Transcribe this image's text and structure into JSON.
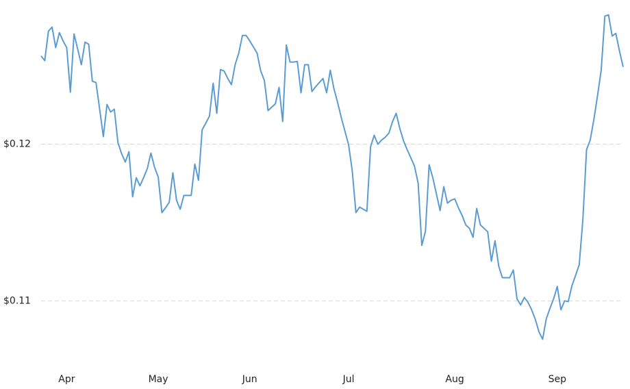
{
  "chart_data": {
    "type": "line",
    "categories": [
      null,
      null,
      null,
      null,
      null,
      null,
      null,
      "Apr",
      null,
      null,
      null,
      null,
      null,
      null,
      null,
      null,
      null,
      null,
      null,
      null,
      null,
      null,
      null,
      null,
      null,
      null,
      null,
      null,
      null,
      null,
      null,
      null,
      "May",
      null,
      null,
      null,
      null,
      null,
      null,
      null,
      null,
      null,
      null,
      null,
      null,
      null,
      null,
      null,
      null,
      null,
      null,
      null,
      null,
      null,
      null,
      null,
      null,
      "Jun",
      null,
      null,
      null,
      null,
      null,
      null,
      null,
      null,
      null,
      null,
      null,
      null,
      null,
      null,
      null,
      null,
      null,
      null,
      null,
      null,
      null,
      null,
      null,
      null,
      null,
      null,
      "Jul",
      null,
      null,
      null,
      null,
      null,
      null,
      null,
      null,
      null,
      null,
      null,
      null,
      null,
      null,
      null,
      null,
      null,
      null,
      null,
      null,
      null,
      null,
      null,
      null,
      null,
      null,
      null,
      null,
      "Aug",
      null,
      null,
      null,
      null,
      null,
      null,
      null,
      null,
      null,
      null,
      null,
      null,
      null,
      null,
      null,
      null,
      null,
      null,
      null,
      null,
      null,
      null,
      null,
      null,
      null,
      null,
      null,
      "Sep",
      null,
      null,
      null,
      null,
      null,
      null,
      null,
      null,
      null,
      null,
      null,
      null,
      null,
      null,
      null,
      null,
      null,
      null
    ],
    "series": [
      {
        "color": "#5b9bd3",
        "values": [
          0.12563,
          0.12533,
          0.12721,
          0.12747,
          0.12616,
          0.12712,
          0.12659,
          0.12616,
          0.12332,
          0.12703,
          0.12607,
          0.12507,
          0.12651,
          0.12638,
          0.12402,
          0.12393,
          0.12223,
          0.12048,
          0.12253,
          0.12205,
          0.12223,
          0.12009,
          0.11939,
          0.11886,
          0.11952,
          0.11664,
          0.11786,
          0.11734,
          0.11786,
          0.11843,
          0.11943,
          0.11852,
          0.1179,
          0.11563,
          0.11594,
          0.11629,
          0.11817,
          0.11642,
          0.11585,
          0.11673,
          0.11673,
          0.11673,
          0.11873,
          0.11769,
          0.12092,
          0.12135,
          0.12179,
          0.12389,
          0.12197,
          0.12476,
          0.12467,
          0.12419,
          0.1238,
          0.12507,
          0.12581,
          0.12694,
          0.12694,
          0.12659,
          0.1262,
          0.12581,
          0.12467,
          0.12406,
          0.12214,
          0.12236,
          0.12258,
          0.12362,
          0.12144,
          0.12633,
          0.12524,
          0.12524,
          0.12528,
          0.12328,
          0.12507,
          0.12507,
          0.12336,
          0.12367,
          0.12393,
          0.12419,
          0.12328,
          0.12472,
          0.12354,
          0.12266,
          0.1217,
          0.12083,
          0.11996,
          0.1183,
          0.11563,
          0.11598,
          0.11585,
          0.11572,
          0.11983,
          0.12057,
          0.12,
          0.12026,
          0.12044,
          0.1207,
          0.12144,
          0.12197,
          0.121,
          0.12022,
          0.11965,
          0.11913,
          0.1186,
          0.11751,
          0.11354,
          0.11445,
          0.11869,
          0.11786,
          0.11681,
          0.11576,
          0.11729,
          0.11624,
          0.11642,
          0.11651,
          0.11594,
          0.11546,
          0.11485,
          0.11463,
          0.11406,
          0.1159,
          0.11485,
          0.11463,
          0.11441,
          0.11253,
          0.11384,
          0.11223,
          0.11148,
          0.11148,
          0.11148,
          0.11197,
          0.11013,
          0.10974,
          0.11022,
          0.10991,
          0.10943,
          0.10882,
          0.10803,
          0.10755,
          0.10886,
          0.10952,
          0.11013,
          0.11092,
          0.10943,
          0.11,
          0.10996,
          0.11096,
          0.11162,
          0.11231,
          0.1152,
          0.11965,
          0.12026,
          0.12157,
          0.1231,
          0.12472,
          0.12817,
          0.12825,
          0.1269,
          0.12707,
          0.12594,
          0.12493
        ]
      }
    ],
    "ylim": [
      0.1056,
      0.1292
    ],
    "yticks": [
      {
        "value": 0.11,
        "label": "$0.11"
      },
      {
        "value": 0.12,
        "label": "$0.12"
      }
    ],
    "grid": true
  }
}
